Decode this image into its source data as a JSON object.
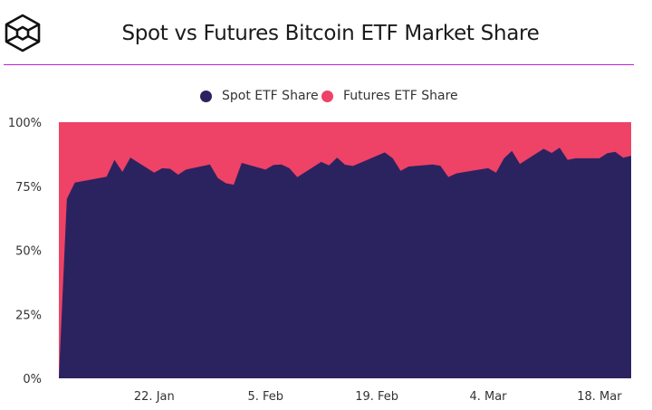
{
  "header": {
    "title": "Spot vs Futures Bitcoin ETF Market Share",
    "logo": "cube-logo",
    "rule_color": "#b624e0"
  },
  "chart_data": {
    "type": "area",
    "stacked": true,
    "percent": true,
    "title": "Spot vs Futures Bitcoin ETF Market Share",
    "legend_position": "top-center",
    "grid": false,
    "xlim": [
      "2024-01-10",
      "2024-03-22"
    ],
    "ylim": [
      0,
      100
    ],
    "y_ticks": [
      {
        "v": 0,
        "label": "0%"
      },
      {
        "v": 25,
        "label": "25%"
      },
      {
        "v": 50,
        "label": "50%"
      },
      {
        "v": 75,
        "label": "75%"
      },
      {
        "v": 100,
        "label": "100%"
      }
    ],
    "x_ticks": [
      {
        "date": "2024-01-22",
        "label": "22. Jan"
      },
      {
        "date": "2024-02-05",
        "label": "5. Feb"
      },
      {
        "date": "2024-02-19",
        "label": "19. Feb"
      },
      {
        "date": "2024-03-04",
        "label": "4. Mar"
      },
      {
        "date": "2024-03-18",
        "label": "18. Mar"
      }
    ],
    "series": [
      {
        "name": "Spot ETF Share",
        "color": "#2b2360"
      },
      {
        "name": "Futures ETF Share",
        "color": "#ee4266"
      }
    ],
    "x": [
      "2024-01-10",
      "2024-01-11",
      "2024-01-12",
      "2024-01-16",
      "2024-01-17",
      "2024-01-18",
      "2024-01-19",
      "2024-01-22",
      "2024-01-23",
      "2024-01-24",
      "2024-01-25",
      "2024-01-26",
      "2024-01-29",
      "2024-01-30",
      "2024-01-31",
      "2024-02-01",
      "2024-02-02",
      "2024-02-05",
      "2024-02-06",
      "2024-02-07",
      "2024-02-08",
      "2024-02-09",
      "2024-02-12",
      "2024-02-13",
      "2024-02-14",
      "2024-02-15",
      "2024-02-16",
      "2024-02-20",
      "2024-02-21",
      "2024-02-22",
      "2024-02-23",
      "2024-02-26",
      "2024-02-27",
      "2024-02-28",
      "2024-02-29",
      "2024-03-04",
      "2024-03-05",
      "2024-03-06",
      "2024-03-07",
      "2024-03-08",
      "2024-03-11",
      "2024-03-12",
      "2024-03-13",
      "2024-03-14",
      "2024-03-15",
      "2024-03-18",
      "2024-03-19",
      "2024-03-20",
      "2024-03-21",
      "2024-03-22"
    ],
    "spot_values": [
      0,
      70.0,
      76.4,
      78.7,
      85.3,
      80.6,
      86.2,
      80.3,
      82.0,
      81.8,
      79.5,
      81.5,
      83.5,
      78.2,
      76.2,
      75.6,
      84.1,
      81.5,
      83.3,
      83.5,
      82.0,
      78.5,
      84.5,
      83.1,
      86.2,
      83.4,
      82.9,
      88.2,
      85.9,
      81.0,
      82.7,
      83.5,
      83.0,
      78.6,
      80.0,
      82.1,
      80.3,
      85.9,
      88.8,
      83.7,
      89.6,
      88.0,
      90.0,
      85.3,
      85.9,
      85.9,
      87.9,
      88.4,
      86.1,
      86.9
    ]
  }
}
